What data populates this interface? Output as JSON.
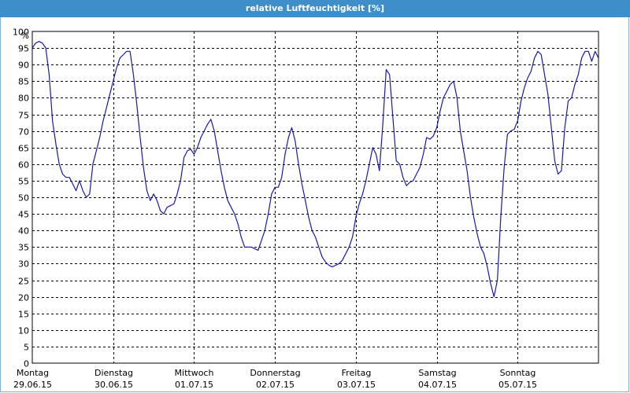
{
  "window": {
    "title": "relative Luftfeuchtigkeit [%]"
  },
  "colors": {
    "titlebar": "#3d8ec9",
    "line": "#1a1aa6",
    "grid": "#000000"
  },
  "chart_data": {
    "type": "line",
    "title": "relative Luftfeuchtigkeit [%]",
    "ylabel": "%",
    "xlabel": "",
    "ylim": [
      0,
      100
    ],
    "yticks": [
      0,
      5,
      10,
      15,
      20,
      25,
      30,
      35,
      40,
      45,
      50,
      55,
      60,
      65,
      70,
      75,
      80,
      85,
      90,
      95,
      100
    ],
    "xlim": [
      "29.06.15 00:00",
      "06.07.15 00:00"
    ],
    "x_ticks": [
      {
        "day": "Montag",
        "date": "29.06.15"
      },
      {
        "day": "Dienstag",
        "date": "30.06.15"
      },
      {
        "day": "Mittwoch",
        "date": "01.07.15"
      },
      {
        "day": "Donnerstag",
        "date": "02.07.15"
      },
      {
        "day": "Freitag",
        "date": "03.07.15"
      },
      {
        "day": "Samstag",
        "date": "04.07.15"
      },
      {
        "day": "Sonntag",
        "date": "05.07.15"
      }
    ],
    "grid": true,
    "legend": "none",
    "series": [
      {
        "points": [
          [
            "29.06.15 00:00",
            95
          ],
          [
            "29.06.15 01:00",
            96.5
          ],
          [
            "29.06.15 02:00",
            97
          ],
          [
            "29.06.15 03:00",
            96.5
          ],
          [
            "29.06.15 04:00",
            95
          ],
          [
            "29.06.15 05:00",
            87
          ],
          [
            "29.06.15 06:00",
            73
          ],
          [
            "29.06.15 07:00",
            66
          ],
          [
            "29.06.15 08:00",
            60
          ],
          [
            "29.06.15 09:00",
            57
          ],
          [
            "29.06.15 10:00",
            56
          ],
          [
            "29.06.15 11:00",
            56
          ],
          [
            "29.06.15 12:00",
            54
          ],
          [
            "29.06.15 13:00",
            52
          ],
          [
            "29.06.15 14:00",
            55
          ],
          [
            "29.06.15 15:00",
            52
          ],
          [
            "29.06.15 16:00",
            50
          ],
          [
            "29.06.15 17:00",
            51
          ],
          [
            "29.06.15 18:00",
            60
          ],
          [
            "29.06.15 19:00",
            64
          ],
          [
            "29.06.15 20:00",
            68
          ],
          [
            "29.06.15 21:00",
            73
          ],
          [
            "29.06.15 22:00",
            77
          ],
          [
            "29.06.15 23:00",
            81
          ],
          [
            "30.06.15 00:00",
            85
          ],
          [
            "30.06.15 01:00",
            89
          ],
          [
            "30.06.15 02:00",
            92
          ],
          [
            "30.06.15 03:00",
            93
          ],
          [
            "30.06.15 04:00",
            94
          ],
          [
            "30.06.15 05:00",
            94
          ],
          [
            "30.06.15 06:00",
            87
          ],
          [
            "30.06.15 07:00",
            78
          ],
          [
            "30.06.15 08:00",
            68
          ],
          [
            "30.06.15 09:00",
            59
          ],
          [
            "30.06.15 10:00",
            52
          ],
          [
            "30.06.15 11:00",
            49
          ],
          [
            "30.06.15 12:00",
            51
          ],
          [
            "30.06.15 13:00",
            49
          ],
          [
            "30.06.15 14:00",
            46
          ],
          [
            "30.06.15 15:00",
            45
          ],
          [
            "30.06.15 16:00",
            47
          ],
          [
            "30.06.15 17:00",
            47.5
          ],
          [
            "30.06.15 18:00",
            48
          ],
          [
            "30.06.15 19:00",
            51
          ],
          [
            "30.06.15 20:00",
            55
          ],
          [
            "30.06.15 21:00",
            62
          ],
          [
            "30.06.15 22:00",
            64
          ],
          [
            "30.06.15 23:00",
            64.5
          ],
          [
            "01.07.15 00:00",
            63
          ],
          [
            "01.07.15 01:00",
            65
          ],
          [
            "01.07.15 02:00",
            68
          ],
          [
            "01.07.15 03:00",
            70
          ],
          [
            "01.07.15 04:00",
            72
          ],
          [
            "01.07.15 05:00",
            73.5
          ],
          [
            "01.07.15 06:00",
            70
          ],
          [
            "01.07.15 07:00",
            64
          ],
          [
            "01.07.15 08:00",
            58
          ],
          [
            "01.07.15 09:00",
            53
          ],
          [
            "01.07.15 10:00",
            49
          ],
          [
            "01.07.15 11:00",
            47
          ],
          [
            "01.07.15 12:00",
            45
          ],
          [
            "01.07.15 13:00",
            42
          ],
          [
            "01.07.15 14:00",
            38
          ],
          [
            "01.07.15 15:00",
            35
          ],
          [
            "01.07.15 16:00",
            35
          ],
          [
            "01.07.15 17:00",
            35
          ],
          [
            "01.07.15 18:00",
            34.5
          ],
          [
            "01.07.15 19:00",
            34
          ],
          [
            "01.07.15 20:00",
            37
          ],
          [
            "01.07.15 21:00",
            40
          ],
          [
            "01.07.15 22:00",
            45
          ],
          [
            "01.07.15 23:00",
            51
          ],
          [
            "02.07.15 00:00",
            53
          ],
          [
            "02.07.15 01:00",
            53
          ],
          [
            "02.07.15 02:00",
            56
          ],
          [
            "02.07.15 03:00",
            63
          ],
          [
            "02.07.15 04:00",
            68
          ],
          [
            "02.07.15 05:00",
            71
          ],
          [
            "02.07.15 06:00",
            67
          ],
          [
            "02.07.15 07:00",
            60
          ],
          [
            "02.07.15 08:00",
            54
          ],
          [
            "02.07.15 09:00",
            49
          ],
          [
            "02.07.15 10:00",
            44
          ],
          [
            "02.07.15 11:00",
            40
          ],
          [
            "02.07.15 12:00",
            38
          ],
          [
            "02.07.15 13:00",
            35
          ],
          [
            "02.07.15 14:00",
            32
          ],
          [
            "02.07.15 15:00",
            30.5
          ],
          [
            "02.07.15 16:00",
            29.5
          ],
          [
            "02.07.15 17:00",
            29
          ],
          [
            "02.07.15 18:00",
            29.5
          ],
          [
            "02.07.15 19:00",
            30
          ],
          [
            "02.07.15 20:00",
            31
          ],
          [
            "02.07.15 21:00",
            33
          ],
          [
            "02.07.15 22:00",
            35
          ],
          [
            "02.07.15 23:00",
            38
          ],
          [
            "03.07.15 00:00",
            44
          ],
          [
            "03.07.15 01:00",
            48
          ],
          [
            "03.07.15 02:00",
            51
          ],
          [
            "03.07.15 03:00",
            55
          ],
          [
            "03.07.15 04:00",
            60
          ],
          [
            "03.07.15 05:00",
            65
          ],
          [
            "03.07.15 06:00",
            63
          ],
          [
            "03.07.15 07:00",
            58
          ],
          [
            "03.07.15 08:00",
            72
          ],
          [
            "03.07.15 09:00",
            88.5
          ],
          [
            "03.07.15 10:00",
            87
          ],
          [
            "03.07.15 11:00",
            74
          ],
          [
            "03.07.15 12:00",
            61
          ],
          [
            "03.07.15 13:00",
            60
          ],
          [
            "03.07.15 14:00",
            56
          ],
          [
            "03.07.15 15:00",
            53.5
          ],
          [
            "03.07.15 16:00",
            54.5
          ],
          [
            "03.07.15 17:00",
            55
          ],
          [
            "03.07.15 18:00",
            57
          ],
          [
            "03.07.15 19:00",
            59
          ],
          [
            "03.07.15 20:00",
            63
          ],
          [
            "03.07.15 21:00",
            68
          ],
          [
            "03.07.15 22:00",
            67.5
          ],
          [
            "03.07.15 23:00",
            68.5
          ],
          [
            "04.07.15 00:00",
            71
          ],
          [
            "04.07.15 01:00",
            76
          ],
          [
            "04.07.15 02:00",
            80
          ],
          [
            "04.07.15 03:00",
            82
          ],
          [
            "04.07.15 04:00",
            84
          ],
          [
            "04.07.15 05:00",
            85
          ],
          [
            "04.07.15 06:00",
            80
          ],
          [
            "04.07.15 07:00",
            70
          ],
          [
            "04.07.15 08:00",
            64
          ],
          [
            "04.07.15 09:00",
            58
          ],
          [
            "04.07.15 10:00",
            50
          ],
          [
            "04.07.15 11:00",
            44
          ],
          [
            "04.07.15 12:00",
            39
          ],
          [
            "04.07.15 13:00",
            35
          ],
          [
            "04.07.15 14:00",
            33
          ],
          [
            "04.07.15 15:00",
            29
          ],
          [
            "04.07.15 16:00",
            24
          ],
          [
            "04.07.15 17:00",
            20
          ],
          [
            "04.07.15 18:00",
            25
          ],
          [
            "04.07.15 19:00",
            44
          ],
          [
            "04.07.15 20:00",
            59
          ],
          [
            "04.07.15 21:00",
            69
          ],
          [
            "04.07.15 22:00",
            70
          ],
          [
            "04.07.15 23:00",
            70.5
          ],
          [
            "05.07.15 00:00",
            73
          ],
          [
            "05.07.15 01:00",
            79
          ],
          [
            "05.07.15 02:00",
            83
          ],
          [
            "05.07.15 03:00",
            86
          ],
          [
            "05.07.15 04:00",
            88
          ],
          [
            "05.07.15 05:00",
            92
          ],
          [
            "05.07.15 06:00",
            94
          ],
          [
            "05.07.15 07:00",
            93
          ],
          [
            "05.07.15 08:00",
            87
          ],
          [
            "05.07.15 09:00",
            81
          ],
          [
            "05.07.15 10:00",
            71
          ],
          [
            "05.07.15 11:00",
            61
          ],
          [
            "05.07.15 12:00",
            57
          ],
          [
            "05.07.15 13:00",
            58
          ],
          [
            "05.07.15 14:00",
            71
          ],
          [
            "05.07.15 15:00",
            79
          ],
          [
            "05.07.15 16:00",
            80
          ],
          [
            "05.07.15 17:00",
            84
          ],
          [
            "05.07.15 18:00",
            87
          ],
          [
            "05.07.15 19:00",
            92
          ],
          [
            "05.07.15 20:00",
            94
          ],
          [
            "05.07.15 21:00",
            94
          ],
          [
            "05.07.15 22:00",
            91
          ],
          [
            "05.07.15 23:00",
            94
          ],
          [
            "06.07.15 00:00",
            92
          ]
        ]
      }
    ]
  }
}
